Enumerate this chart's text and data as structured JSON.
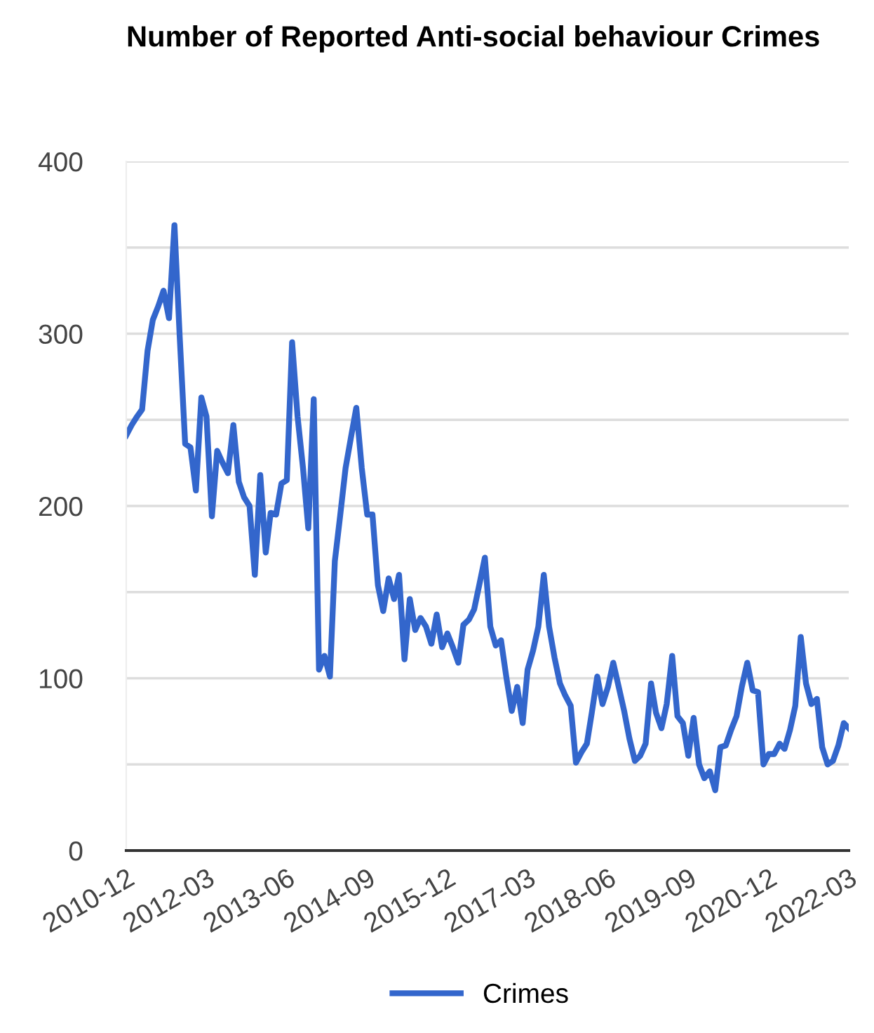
{
  "chart_data": {
    "type": "line",
    "title": "Number of Reported Anti-social behaviour Crimes",
    "x": [
      "2010-12",
      "2011-01",
      "2011-02",
      "2011-03",
      "2011-04",
      "2011-05",
      "2011-06",
      "2011-07",
      "2011-08",
      "2011-09",
      "2011-10",
      "2011-11",
      "2011-12",
      "2012-01",
      "2012-02",
      "2012-03",
      "2012-04",
      "2012-05",
      "2012-06",
      "2012-07",
      "2012-08",
      "2012-09",
      "2012-10",
      "2012-11",
      "2012-12",
      "2013-01",
      "2013-02",
      "2013-03",
      "2013-04",
      "2013-05",
      "2013-06",
      "2013-07",
      "2013-08",
      "2013-09",
      "2013-10",
      "2013-11",
      "2013-12",
      "2014-01",
      "2014-02",
      "2014-03",
      "2014-04",
      "2014-05",
      "2014-06",
      "2014-07",
      "2014-08",
      "2014-09",
      "2014-10",
      "2014-11",
      "2014-12",
      "2015-01",
      "2015-02",
      "2015-03",
      "2015-04",
      "2015-05",
      "2015-06",
      "2015-07",
      "2015-08",
      "2015-09",
      "2015-10",
      "2015-11",
      "2015-12",
      "2016-01",
      "2016-02",
      "2016-03",
      "2016-04",
      "2016-05",
      "2016-06",
      "2016-07",
      "2016-08",
      "2016-09",
      "2016-10",
      "2016-11",
      "2016-12",
      "2017-01",
      "2017-02",
      "2017-03",
      "2017-04",
      "2017-05",
      "2017-06",
      "2017-07",
      "2017-08",
      "2017-09",
      "2017-10",
      "2017-11",
      "2017-12",
      "2018-01",
      "2018-02",
      "2018-03",
      "2018-04",
      "2018-05",
      "2018-06",
      "2018-07",
      "2018-08",
      "2018-09",
      "2018-10",
      "2018-11",
      "2018-12",
      "2019-01",
      "2019-02",
      "2019-03",
      "2019-04",
      "2019-05",
      "2019-06",
      "2019-07",
      "2019-08",
      "2019-09",
      "2019-10",
      "2019-11",
      "2019-12",
      "2020-01",
      "2020-02",
      "2020-03",
      "2020-04",
      "2020-05",
      "2020-06",
      "2020-07",
      "2020-08",
      "2020-09",
      "2020-10",
      "2020-11",
      "2020-12",
      "2021-01",
      "2021-02",
      "2021-03",
      "2021-04",
      "2021-05",
      "2021-06",
      "2021-07",
      "2021-08",
      "2021-09",
      "2021-10",
      "2021-11",
      "2021-12",
      "2022-01",
      "2022-02",
      "2022-03"
    ],
    "series": [
      {
        "name": "Crimes",
        "color": "#3366cc",
        "values": [
          241,
          247,
          252,
          256,
          290,
          308,
          316,
          325,
          309,
          363,
          298,
          236,
          234,
          209,
          263,
          252,
          194,
          232,
          225,
          219,
          247,
          214,
          205,
          200,
          160,
          218,
          173,
          196,
          195,
          213,
          215,
          295,
          252,
          222,
          187,
          262,
          105,
          113,
          101,
          168,
          195,
          222,
          240,
          257,
          222,
          195,
          195,
          154,
          139,
          158,
          146,
          160,
          111,
          146,
          128,
          135,
          130,
          120,
          137,
          118,
          126,
          118,
          109,
          131,
          134,
          140,
          155,
          170,
          130,
          119,
          122,
          100,
          81,
          95,
          74,
          105,
          116,
          130,
          160,
          130,
          112,
          97,
          90,
          84,
          51,
          57,
          62,
          80,
          101,
          85,
          95,
          109,
          95,
          81,
          65,
          52,
          55,
          62,
          97,
          80,
          71,
          85,
          113,
          78,
          74,
          55,
          77,
          50,
          42,
          46,
          35,
          60,
          61,
          70,
          78,
          95,
          109,
          93,
          92,
          50,
          56,
          56,
          62,
          59,
          70,
          84,
          124,
          97,
          85,
          88,
          60,
          50,
          52,
          61,
          74,
          71
        ]
      }
    ],
    "xlim": [
      "2010-12",
      "2022-03"
    ],
    "xticks": [
      "2010-12",
      "2012-03",
      "2013-06",
      "2014-09",
      "2015-12",
      "2017-03",
      "2018-06",
      "2019-09",
      "2020-12",
      "2022-03"
    ],
    "ylim": [
      0,
      400
    ],
    "yticks": [
      0,
      {
        "value": 50,
        "label": null
      },
      100,
      {
        "value": 150,
        "label": null
      },
      200,
      {
        "value": 250,
        "label": null
      },
      300,
      {
        "value": 350,
        "label": null
      },
      400
    ],
    "grid": "y",
    "legend": "bottom",
    "marker": "none",
    "line_style": "solid"
  }
}
